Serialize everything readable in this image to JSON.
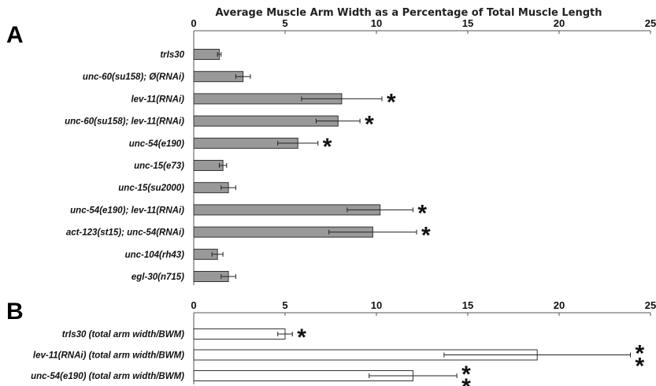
{
  "chart_data": [
    {
      "type": "bar",
      "orientation": "horizontal",
      "panel_label": "A",
      "title": "Average Muscle Arm Width as a Percentage of Total Muscle Length",
      "xlabel": "",
      "ylabel": "",
      "xlim": [
        0,
        25
      ],
      "ticks": [
        "0",
        "5",
        "10",
        "15",
        "20",
        "25"
      ],
      "bar_color": "#999999",
      "categories": [
        "trIs30",
        "unc-60(su158); Ø(RNAi)",
        "lev-11(RNAi)",
        "unc-60(su158); lev-11(RNAi)",
        "unc-54(e190)",
        "unc-15(e73)",
        "unc-15(su2000)",
        "unc-54(e190); lev-11(RNAi)",
        "act-123(st15); unc-54(RNAi)",
        "unc-104(rh43)",
        "egl-30(n715)"
      ],
      "values": [
        1.4,
        2.7,
        8.1,
        7.9,
        5.7,
        1.6,
        1.9,
        10.2,
        9.8,
        1.3,
        1.9
      ],
      "errors": [
        0.1,
        0.4,
        2.2,
        1.2,
        1.1,
        0.2,
        0.4,
        1.8,
        2.4,
        0.3,
        0.4
      ],
      "significance": [
        "",
        "",
        "*",
        "*",
        "*",
        "",
        "",
        "*",
        "*",
        "",
        ""
      ]
    },
    {
      "type": "bar",
      "orientation": "horizontal",
      "panel_label": "B",
      "title": "",
      "xlabel": "",
      "ylabel": "",
      "xlim": [
        0,
        25
      ],
      "ticks": [
        "0",
        "5",
        "10",
        "15",
        "20",
        "25"
      ],
      "bar_color": "#ffffff",
      "categories": [
        "trIs30 (total arm width/BWM)",
        "lev-11(RNAi) (total arm width/BWM)",
        "unc-54(e190) (total arm width/BWM)"
      ],
      "values": [
        5.0,
        18.8,
        12.0
      ],
      "errors": [
        0.4,
        5.1,
        2.4
      ],
      "significance": [
        "*",
        "**",
        "**"
      ]
    }
  ]
}
